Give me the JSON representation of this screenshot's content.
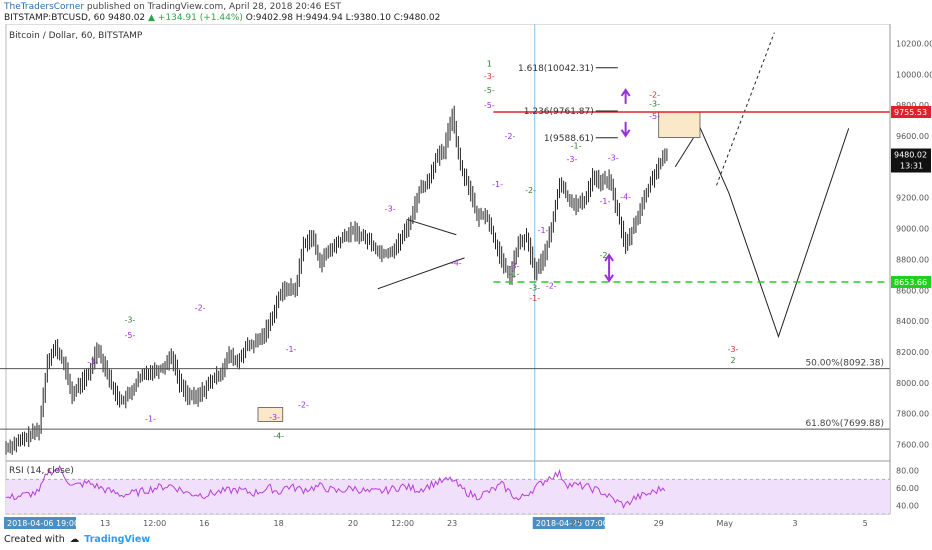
{
  "header": {
    "author": "TheTradersCorner",
    "published_text": "published on TradingView.com, April 28, 2018 20:46 EST",
    "symbol": "BITSTAMP:BTCUSD, 60",
    "last": "9480.02",
    "change": "+134.91 (+1.44%)",
    "ohlc": "O:9402.98 H:9494.94 L:9380.10 C:9480.02"
  },
  "chart_title": "Bitcoin / Dollar, 60, BITSTAMP",
  "rsi_title": "RSI (14, close)",
  "footer": {
    "created_with": "Created with",
    "brand": "TradingView"
  },
  "colors": {
    "candle": "#222222",
    "resistance": "#e0202a",
    "support": "#1fd11f",
    "purple": "#9b30d9",
    "vline": "#7fc4e8",
    "rsi": "#b53fd8",
    "rsi_band": "#f0e0fb"
  },
  "chart_data": {
    "type": "line",
    "price_ylim": [
      7500,
      10300
    ],
    "y_ticks": [
      7600,
      7800,
      8000,
      8200,
      8400,
      8600,
      8800,
      9000,
      9200,
      9400,
      9600,
      9800,
      10000,
      10200
    ],
    "y_tick_labels": [
      "7600.00",
      "7800.00",
      "8000.00",
      "8200.00",
      "8400.00",
      "8600.00",
      "8800.00",
      "9000.00",
      "9200.00",
      "9400.00",
      "9600.00",
      "9800.00",
      "10000.00",
      "10200.00"
    ],
    "x_tick_labels": [
      {
        "label": "2018-04-06 19:00:00",
        "i": 0,
        "boxed": true
      },
      {
        "label": "13",
        "i": 24
      },
      {
        "label": "12:00",
        "i": 36
      },
      {
        "label": "16",
        "i": 48
      },
      {
        "label": "18",
        "i": 66
      },
      {
        "label": "20",
        "i": 84
      },
      {
        "label": "12:00",
        "i": 96
      },
      {
        "label": "23",
        "i": 108
      },
      {
        "label": "2018-04-25 07:00:00",
        "i": 128,
        "boxed": true
      },
      {
        "label": "27",
        "i": 138
      },
      {
        "label": "29",
        "i": 158
      },
      {
        "label": "May",
        "i": 174
      },
      {
        "label": "3",
        "i": 191
      },
      {
        "label": "5",
        "i": 208
      }
    ],
    "price_path": [
      [
        0,
        7580
      ],
      [
        4,
        7630
      ],
      [
        8,
        7700
      ],
      [
        10,
        8150
      ],
      [
        12,
        8230
      ],
      [
        14,
        8120
      ],
      [
        16,
        7920
      ],
      [
        18,
        8000
      ],
      [
        20,
        8050
      ],
      [
        22,
        8230
      ],
      [
        24,
        8100
      ],
      [
        26,
        7950
      ],
      [
        28,
        7880
      ],
      [
        30,
        7930
      ],
      [
        32,
        8020
      ],
      [
        34,
        8070
      ],
      [
        36,
        8080
      ],
      [
        38,
        8100
      ],
      [
        40,
        8180
      ],
      [
        42,
        8000
      ],
      [
        44,
        7920
      ],
      [
        46,
        7900
      ],
      [
        48,
        7960
      ],
      [
        50,
        8020
      ],
      [
        52,
        8070
      ],
      [
        54,
        8180
      ],
      [
        56,
        8130
      ],
      [
        58,
        8230
      ],
      [
        60,
        8250
      ],
      [
        62,
        8300
      ],
      [
        64,
        8400
      ],
      [
        66,
        8560
      ],
      [
        68,
        8620
      ],
      [
        70,
        8600
      ],
      [
        72,
        8900
      ],
      [
        74,
        8950
      ],
      [
        76,
        8780
      ],
      [
        78,
        8850
      ],
      [
        80,
        8900
      ],
      [
        82,
        8950
      ],
      [
        84,
        8990
      ],
      [
        86,
        8950
      ],
      [
        88,
        8920
      ],
      [
        90,
        8850
      ],
      [
        92,
        8840
      ],
      [
        94,
        8870
      ],
      [
        96,
        8950
      ],
      [
        98,
        9060
      ],
      [
        100,
        9250
      ],
      [
        102,
        9300
      ],
      [
        104,
        9450
      ],
      [
        106,
        9500
      ],
      [
        108,
        9750
      ],
      [
        110,
        9400
      ],
      [
        112,
        9280
      ],
      [
        114,
        9070
      ],
      [
        116,
        9100
      ],
      [
        118,
        8950
      ],
      [
        120,
        8780
      ],
      [
        122,
        8690
      ],
      [
        124,
        8900
      ],
      [
        126,
        8940
      ],
      [
        128,
        8720
      ],
      [
        130,
        8800
      ],
      [
        132,
        9000
      ],
      [
        134,
        9300
      ],
      [
        136,
        9200
      ],
      [
        138,
        9150
      ],
      [
        140,
        9180
      ],
      [
        142,
        9340
      ],
      [
        144,
        9300
      ],
      [
        146,
        9320
      ],
      [
        148,
        9110
      ],
      [
        150,
        8880
      ],
      [
        152,
        9020
      ],
      [
        154,
        9160
      ],
      [
        156,
        9300
      ],
      [
        158,
        9410
      ],
      [
        160,
        9480
      ]
    ],
    "forecast_path": [
      [
        162,
        9400
      ],
      [
        168,
        9655
      ],
      [
        175,
        9230
      ],
      [
        187,
        8300
      ],
      [
        204,
        9650
      ]
    ],
    "alt_forecast": [
      [
        172,
        9280
      ],
      [
        186,
        10270
      ]
    ],
    "rsi_ylim": [
      30,
      90
    ],
    "rsi_ticks": [
      40,
      60,
      80
    ],
    "rsi_labels": [
      "40.00",
      "60.00",
      "80.00"
    ],
    "rsi_path": [
      [
        0,
        48
      ],
      [
        8,
        55
      ],
      [
        10,
        78
      ],
      [
        13,
        82
      ],
      [
        16,
        62
      ],
      [
        20,
        66
      ],
      [
        24,
        58
      ],
      [
        28,
        52
      ],
      [
        32,
        55
      ],
      [
        36,
        60
      ],
      [
        40,
        63
      ],
      [
        44,
        54
      ],
      [
        48,
        52
      ],
      [
        52,
        56
      ],
      [
        56,
        58
      ],
      [
        60,
        54
      ],
      [
        64,
        60
      ],
      [
        66,
        55
      ],
      [
        68,
        62
      ],
      [
        72,
        58
      ],
      [
        76,
        62
      ],
      [
        80,
        56
      ],
      [
        84,
        60
      ],
      [
        88,
        55
      ],
      [
        92,
        57
      ],
      [
        96,
        62
      ],
      [
        100,
        58
      ],
      [
        104,
        66
      ],
      [
        106,
        68
      ],
      [
        108,
        70
      ],
      [
        110,
        60
      ],
      [
        112,
        54
      ],
      [
        114,
        50
      ],
      [
        118,
        58
      ],
      [
        120,
        64
      ],
      [
        124,
        46
      ],
      [
        128,
        60
      ],
      [
        132,
        74
      ],
      [
        134,
        76
      ],
      [
        136,
        64
      ],
      [
        140,
        62
      ],
      [
        144,
        56
      ],
      [
        148,
        44
      ],
      [
        150,
        40
      ],
      [
        152,
        48
      ],
      [
        156,
        54
      ],
      [
        160,
        62
      ]
    ],
    "horizontal_levels": [
      {
        "label": "9755.53",
        "value": 9755.53,
        "color": "#e0202a",
        "style": "solid"
      },
      {
        "label": "8653.66",
        "value": 8653.66,
        "color": "#1fd11f",
        "style": "dashed"
      }
    ],
    "current_price": {
      "label": "9480.02",
      "value": 9480.02,
      "countdown": "13:31"
    },
    "fib_levels": [
      {
        "text": "1.618(10042.31)",
        "value": 10042.31,
        "i0": 118,
        "i1": 136
      },
      {
        "text": "1.236(9761.87)",
        "value": 9761.87,
        "i0": 118,
        "i1": 136
      },
      {
        "text": "1(9588.61)",
        "value": 9588.61,
        "i0": 124,
        "i1": 136
      }
    ],
    "retracements": [
      {
        "text": "50.00%(8092.38)",
        "value": 8092.38
      },
      {
        "text": "61.80%(7699.88)",
        "value": 7699.88
      }
    ],
    "wave_labels": [
      {
        "text": "1",
        "i": 117,
        "v": 10050,
        "c": "green"
      },
      {
        "text": "-3-",
        "i": 117,
        "v": 9970,
        "c": "red"
      },
      {
        "text": "-5-",
        "i": 117,
        "v": 9880,
        "c": "green"
      },
      {
        "text": "-5-",
        "i": 117,
        "v": 9780,
        "c": "purple"
      },
      {
        "text": "-2-",
        "i": 122,
        "v": 9580,
        "c": "purple"
      },
      {
        "text": "-1-",
        "i": 119,
        "v": 9270,
        "c": "purple"
      },
      {
        "text": "-2-",
        "i": 127,
        "v": 9230,
        "c": "green"
      },
      {
        "text": "-1-",
        "i": 130,
        "v": 8970,
        "c": "purple"
      },
      {
        "text": "-3-",
        "i": 123,
        "v": 8740,
        "c": "purple"
      },
      {
        "text": "-1-",
        "i": 123,
        "v": 8690,
        "c": "green"
      },
      {
        "text": "-3-",
        "i": 128,
        "v": 8600,
        "c": "green"
      },
      {
        "text": "-2-",
        "i": 132,
        "v": 8610,
        "c": "purple"
      },
      {
        "text": "-1-",
        "i": 128,
        "v": 8530,
        "c": "red"
      },
      {
        "text": "-1-",
        "i": 138,
        "v": 9520,
        "c": "green"
      },
      {
        "text": "-3-",
        "i": 137,
        "v": 9430,
        "c": "purple"
      },
      {
        "text": "-3-",
        "i": 147,
        "v": 9440,
        "c": "purple"
      },
      {
        "text": "-1-",
        "i": 145,
        "v": 9160,
        "c": "purple"
      },
      {
        "text": "-2-",
        "i": 145,
        "v": 8810,
        "c": "green"
      },
      {
        "text": "-4-",
        "i": 150,
        "v": 9190,
        "c": "purple"
      },
      {
        "text": "-2-",
        "i": 157,
        "v": 9850,
        "c": "red"
      },
      {
        "text": "-3-",
        "i": 157,
        "v": 9790,
        "c": "green"
      },
      {
        "text": "-5-",
        "i": 157,
        "v": 9710,
        "c": "purple"
      },
      {
        "text": "-3-",
        "i": 93,
        "v": 9110,
        "c": "purple"
      },
      {
        "text": "-4-",
        "i": 109,
        "v": 8760,
        "c": "purple"
      },
      {
        "text": "-2-",
        "i": 47,
        "v": 8470,
        "c": "purple"
      },
      {
        "text": "-3-",
        "i": 30,
        "v": 8390,
        "c": "green"
      },
      {
        "text": "-5-",
        "i": 30,
        "v": 8290,
        "c": "purple"
      },
      {
        "text": "-3-",
        "i": 21,
        "v": 8120,
        "c": "purple"
      },
      {
        "text": "-1-",
        "i": 35,
        "v": 7750,
        "c": "purple"
      },
      {
        "text": "-1-",
        "i": 69,
        "v": 8200,
        "c": "purple"
      },
      {
        "text": "-2-",
        "i": 72,
        "v": 7840,
        "c": "purple"
      },
      {
        "text": "-3-",
        "i": 65,
        "v": 7760,
        "c": "purple"
      },
      {
        "text": "-4-",
        "i": 66,
        "v": 7640,
        "c": "green"
      },
      {
        "text": "-3-",
        "i": 176,
        "v": 8200,
        "c": "red"
      },
      {
        "text": "2",
        "i": 176,
        "v": 8130,
        "c": "green"
      }
    ]
  }
}
